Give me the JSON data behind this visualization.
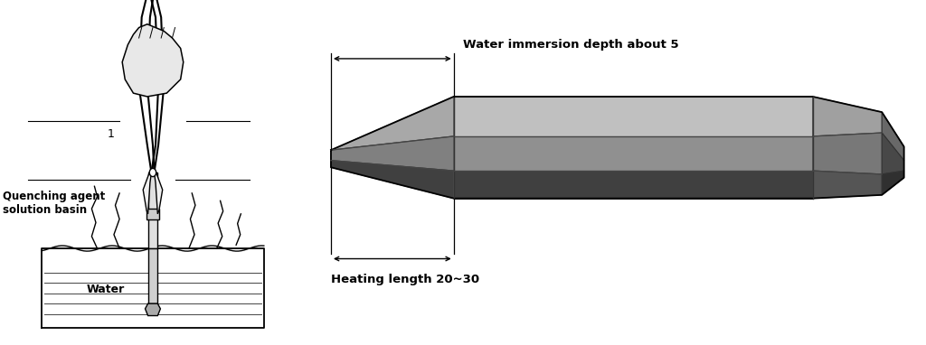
{
  "fig_width": 10.24,
  "fig_height": 3.82,
  "background_color": "#ffffff",
  "left_panel": {
    "label_quenching": "Quenching agent\nsolution basin",
    "label_water": "Water",
    "label_number": "1"
  },
  "right_panel": {
    "label_immersion": "Water immersion depth about 5",
    "label_heating": "Heating length 20~30",
    "chisel_colors": {
      "top_face": "#c0c0c0",
      "top_face_left": "#a8a8a8",
      "front_face": "#909090",
      "front_face_left": "#808080",
      "bottom_face": "#404040",
      "right_bevel_top": "#a0a0a0",
      "right_bevel_front": "#787878",
      "right_bevel_bottom": "#555555",
      "tip_top": "#686868",
      "tip_front": "#484848",
      "tip_bottom": "#303030"
    }
  }
}
